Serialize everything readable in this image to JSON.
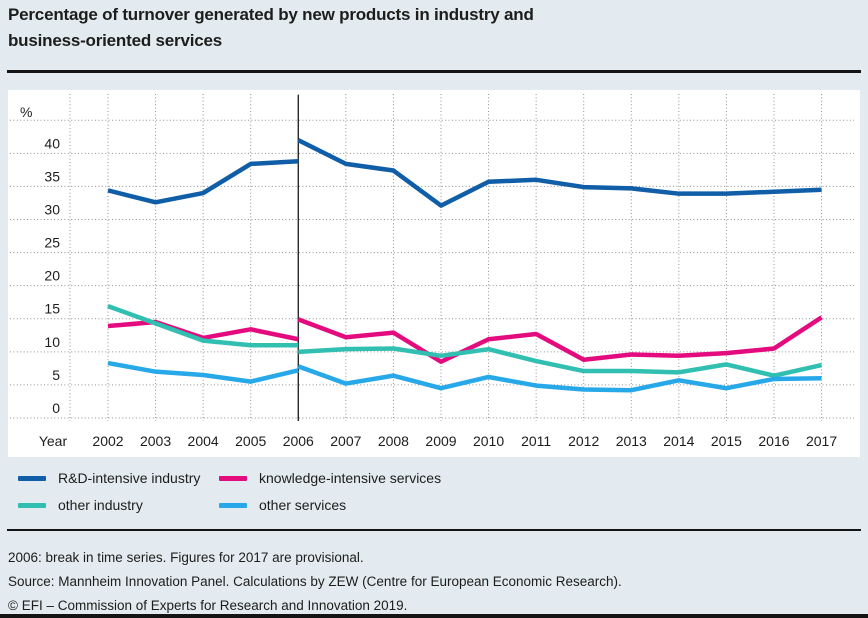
{
  "title": {
    "line1": "Percentage of turnover generated by new products in industry and",
    "line2": "business-oriented services"
  },
  "chart_data": {
    "type": "line",
    "title": "Percentage of turnover generated by new products in industry and business-oriented services",
    "ylabel": "%",
    "xlabel": "Year",
    "ylim": [
      0,
      45
    ],
    "ytick_values": [
      0,
      5,
      10,
      15,
      20,
      25,
      30,
      35,
      40
    ],
    "grid": "dotted",
    "legend_position": "bottom",
    "years": [
      2002,
      2003,
      2004,
      2005,
      2006,
      2007,
      2008,
      2009,
      2010,
      2011,
      2012,
      2013,
      2014,
      2015,
      2016,
      2017
    ],
    "break_year": 2006,
    "series": [
      {
        "name": "R&D-intensive industry",
        "color": "#0f5ea7",
        "pre_break": {
          "years": [
            2002,
            2003,
            2004,
            2005,
            2006
          ],
          "values": [
            34.4,
            32.6,
            34.0,
            38.4,
            38.8
          ]
        },
        "post_break": {
          "years": [
            2006,
            2007,
            2008,
            2009,
            2010,
            2011,
            2012,
            2013,
            2014,
            2015,
            2016,
            2017
          ],
          "values": [
            42.0,
            38.4,
            37.4,
            32.1,
            35.7,
            36.0,
            34.9,
            34.7,
            33.9,
            33.9,
            34.2,
            34.5
          ]
        }
      },
      {
        "name": "knowledge-intensive services",
        "color": "#e40b7e",
        "pre_break": {
          "years": [
            2002,
            2003,
            2004,
            2005,
            2006
          ],
          "values": [
            13.9,
            14.5,
            12.1,
            13.4,
            11.9
          ]
        },
        "post_break": {
          "years": [
            2006,
            2007,
            2008,
            2009,
            2010,
            2011,
            2012,
            2013,
            2014,
            2015,
            2016,
            2017
          ],
          "values": [
            14.9,
            12.2,
            12.9,
            8.5,
            11.9,
            12.7,
            8.8,
            9.6,
            9.4,
            9.8,
            10.5,
            15.2
          ]
        }
      },
      {
        "name": "other industry",
        "color": "#31bfb1",
        "pre_break": {
          "years": [
            2002,
            2003,
            2004,
            2005,
            2006
          ],
          "values": [
            16.9,
            14.3,
            11.7,
            11.0,
            11.0
          ]
        },
        "post_break": {
          "years": [
            2006,
            2007,
            2008,
            2009,
            2010,
            2011,
            2012,
            2013,
            2014,
            2015,
            2016,
            2017
          ],
          "values": [
            10.0,
            10.4,
            10.5,
            9.4,
            10.4,
            8.6,
            7.1,
            7.1,
            6.9,
            8.1,
            6.4,
            8.0
          ]
        }
      },
      {
        "name": "other services",
        "color": "#27a8e8",
        "pre_break": {
          "years": [
            2002,
            2003,
            2004,
            2005,
            2006
          ],
          "values": [
            8.3,
            7.0,
            6.5,
            5.5,
            7.2
          ]
        },
        "post_break": {
          "years": [
            2006,
            2007,
            2008,
            2009,
            2010,
            2011,
            2012,
            2013,
            2014,
            2015,
            2016,
            2017
          ],
          "values": [
            7.8,
            5.2,
            6.4,
            4.5,
            6.2,
            4.9,
            4.3,
            4.2,
            5.7,
            4.5,
            5.9,
            6.0
          ]
        }
      }
    ]
  },
  "notes": [
    "2006: break in time series. Figures for 2017 are provisional.",
    "Source: Mannheim Innovation Panel. Calculations by ZEW (Centre for European Economic Research).",
    "© EFI – Commission of Experts for Research and Innovation 2019."
  ],
  "colors": {
    "background": "#e3ebf0",
    "panel": "#ffffff",
    "text": "#1d1d1b",
    "grid": "#8f8f8f",
    "break_line": "#1a1a1a",
    "rule": "#141414"
  }
}
